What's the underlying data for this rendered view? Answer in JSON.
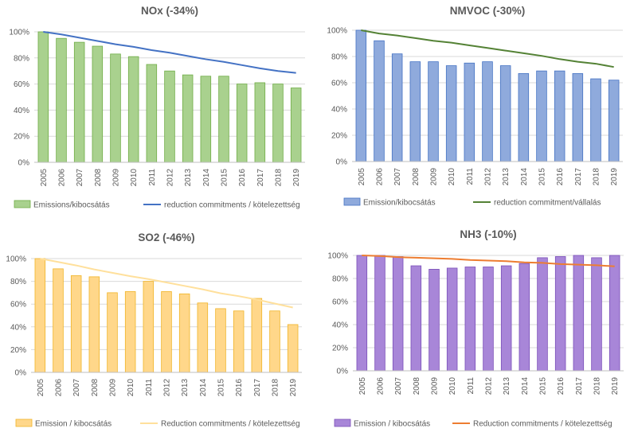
{
  "chart_data": [
    {
      "type": "bar",
      "title": "NOx (-34%)",
      "categories": [
        "2005",
        "2006",
        "2007",
        "2008",
        "2009",
        "2010",
        "2011",
        "2012",
        "2013",
        "2014",
        "2015",
        "2016",
        "2017",
        "2018",
        "2019"
      ],
      "ylim": [
        0,
        100
      ],
      "yticks": [
        "0%",
        "20%",
        "40%",
        "60%",
        "80%",
        "100%"
      ],
      "series": [
        {
          "name": "Emissions/kibocsátás",
          "kind": "bar",
          "color": "#a9d18e",
          "edge": "#70ad47",
          "values": [
            100,
            95,
            92,
            89,
            83,
            81,
            75,
            70,
            67,
            66,
            66,
            60,
            61,
            60,
            57
          ]
        },
        {
          "name": "reduction commitments / kötelezettség",
          "kind": "line",
          "color": "#4472c4",
          "values": [
            100,
            98,
            95.5,
            93,
            90.5,
            88.5,
            86,
            84,
            81.5,
            79,
            77,
            74.5,
            72,
            70,
            68.5
          ]
        }
      ]
    },
    {
      "type": "bar",
      "title": "NMVOC (-30%)",
      "categories": [
        "2005",
        "2006",
        "2007",
        "2008",
        "2009",
        "2010",
        "2011",
        "2012",
        "2013",
        "2014",
        "2015",
        "2016",
        "2017",
        "2018",
        "2019"
      ],
      "ylim": [
        0,
        100
      ],
      "yticks": [
        "0%",
        "20%",
        "40%",
        "60%",
        "80%",
        "100%"
      ],
      "series": [
        {
          "name": "Emission/kibocsátás",
          "kind": "bar",
          "color": "#8faadc",
          "edge": "#4472c4",
          "values": [
            100,
            92,
            82,
            76,
            76,
            73,
            75,
            76,
            73,
            67,
            69,
            69,
            67,
            63,
            62
          ]
        },
        {
          "name": "reduction commitment/vállalás",
          "kind": "line",
          "color": "#548235",
          "values": [
            100,
            97.5,
            96,
            94,
            92,
            90.5,
            88.5,
            86.5,
            84.5,
            82.5,
            80.5,
            78,
            76,
            74.5,
            72
          ]
        }
      ]
    },
    {
      "type": "bar",
      "title": "SO2 (-46%)",
      "categories": [
        "2005",
        "2006",
        "2007",
        "2008",
        "2009",
        "2010",
        "2011",
        "2012",
        "2013",
        "2014",
        "2015",
        "2016",
        "2017",
        "2018",
        "2019"
      ],
      "ylim": [
        0,
        100
      ],
      "yticks": [
        "0%",
        "20%",
        "40%",
        "60%",
        "80%",
        "100%"
      ],
      "series": [
        {
          "name": "Emission / kibocsátás",
          "kind": "bar",
          "color": "#ffd78a",
          "edge": "#f0b428",
          "values": [
            100,
            91,
            85,
            84,
            70,
            71,
            80,
            71,
            69,
            61,
            56,
            54,
            65,
            54,
            42
          ]
        },
        {
          "name": "Reduction commitments / kötelezettség",
          "kind": "line",
          "color": "#ffe09c",
          "values": [
            100,
            97,
            94,
            90.5,
            87.5,
            84.5,
            82,
            79,
            76,
            73,
            69.5,
            67,
            64,
            60.5,
            57
          ]
        }
      ]
    },
    {
      "type": "bar",
      "title": "NH3 (-10%)",
      "categories": [
        "2005",
        "2006",
        "2007",
        "2008",
        "2009",
        "2010",
        "2011",
        "2012",
        "2013",
        "2014",
        "2015",
        "2016",
        "2017",
        "2018",
        "2019"
      ],
      "ylim": [
        0,
        100
      ],
      "yticks": [
        "0%",
        "20%",
        "40%",
        "60%",
        "80%",
        "100%"
      ],
      "series": [
        {
          "name": "Emission / kibocsátás",
          "kind": "bar",
          "color": "#a886d8",
          "edge": "#7a4fb8",
          "values": [
            100,
            100,
            99,
            91,
            88,
            89,
            90,
            90,
            91,
            93,
            98,
            99,
            100,
            98,
            100
          ]
        },
        {
          "name": "Reduction commitments / kötelezettség",
          "kind": "line",
          "color": "#ed7d31",
          "values": [
            100,
            99.5,
            98.5,
            98,
            97.5,
            97,
            96,
            95.5,
            95,
            94,
            93.5,
            92.5,
            92,
            91.5,
            90.5
          ]
        }
      ]
    }
  ]
}
